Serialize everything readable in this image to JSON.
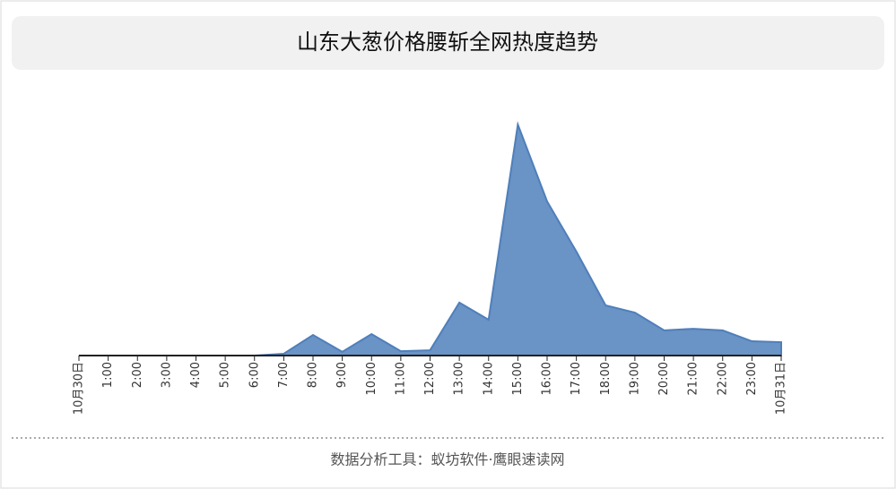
{
  "chart_data": {
    "type": "area",
    "title": "山东大葱价格腰斩全网热度趋势",
    "categories": [
      "10月30日",
      "1:00",
      "2:00",
      "3:00",
      "4:00",
      "5:00",
      "6:00",
      "7:00",
      "8:00",
      "9:00",
      "10:00",
      "11:00",
      "12:00",
      "13:00",
      "14:00",
      "15:00",
      "16:00",
      "17:00",
      "18:00",
      "19:00",
      "20:00",
      "21:00",
      "22:00",
      "23:00",
      "10月31日"
    ],
    "values": [
      0,
      0,
      0,
      0,
      0,
      0,
      0,
      0.8,
      8.9,
      1.6,
      9.3,
      1.9,
      2.3,
      22.9,
      15.5,
      100,
      66.7,
      45,
      21.7,
      18.6,
      10.9,
      11.6,
      10.9,
      6.2,
      5.8
    ],
    "color": "#6a93c6",
    "ylim": [
      0,
      100
    ],
    "footer": "数据分析工具：蚁坊软件·鹰眼速读网"
  }
}
